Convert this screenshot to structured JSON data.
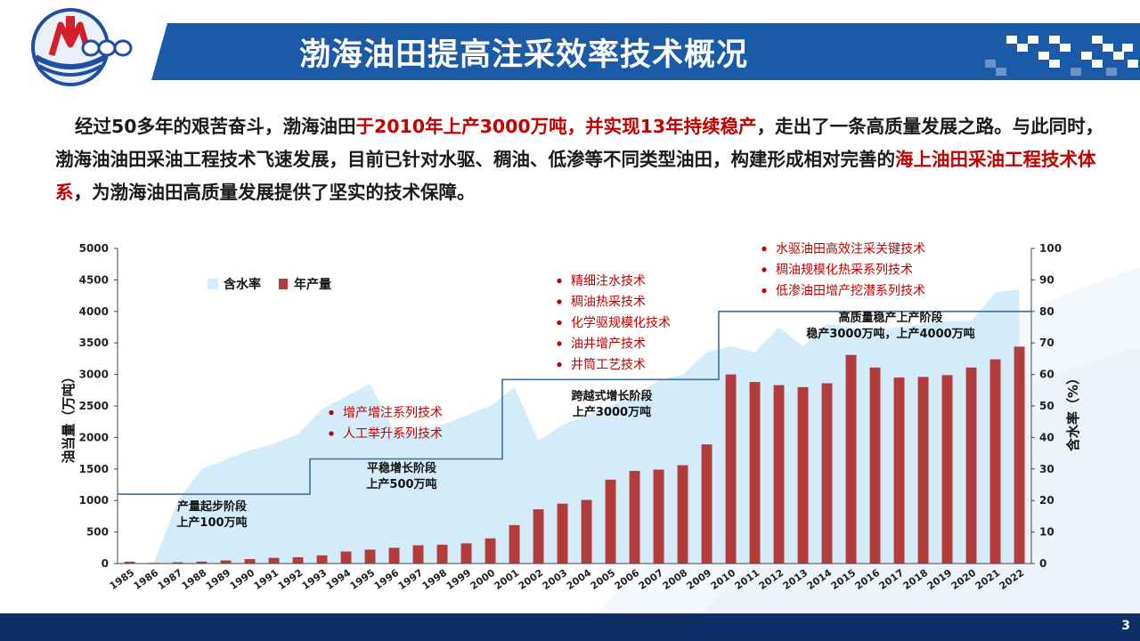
{
  "slide": {
    "title": "渤海油田提高注采效率技术概况",
    "page_number": "3",
    "colors": {
      "header_blue": "#1a5aa6",
      "footer_blue": "#0b2f66",
      "highlight_red": "#c00000",
      "bar_red": "#b23b3b",
      "area_blue": "#d4ebf9",
      "step_line": "#3f6fa0"
    }
  },
  "intro": {
    "s1": "经过50多年的艰苦奋斗，渤海油田",
    "s2": "于2010年上产3000万吨，并实现13年持续稳产",
    "s3": "，走出了一条高质量发展之路。与此同时，渤海油油田采油工程技术飞速发展，目前已针对水驱、稠油、低渗等不同类型油田，构建形成相对完善的",
    "s4": "海上油田采油工程技术体系",
    "s5": "，为渤海油田高质量发展提供了坚实的技术保障。"
  },
  "chart_data": {
    "type": "bar",
    "categories": [
      "1985",
      "1986",
      "1987",
      "1988",
      "1989",
      "1990",
      "1991",
      "1992",
      "1993",
      "1994",
      "1995",
      "1996",
      "1997",
      "1998",
      "1999",
      "2000",
      "2001",
      "2002",
      "2003",
      "2004",
      "2005",
      "2006",
      "2007",
      "2008",
      "2009",
      "2010",
      "2011",
      "2012",
      "2013",
      "2014",
      "2015",
      "2016",
      "2017",
      "2018",
      "2019",
      "2020",
      "2021",
      "2022"
    ],
    "series": [
      {
        "name": "年产量",
        "type": "bar",
        "axis": "left",
        "values": [
          30,
          10,
          20,
          30,
          50,
          70,
          90,
          100,
          130,
          190,
          220,
          250,
          290,
          300,
          320,
          400,
          610,
          860,
          950,
          1010,
          1330,
          1470,
          1490,
          1560,
          1890,
          3000,
          2880,
          2830,
          2800,
          2860,
          3310,
          3110,
          2950,
          2960,
          2990,
          3110,
          3240,
          3440
        ]
      },
      {
        "name": "含水率",
        "type": "area",
        "axis": "right",
        "values": [
          0,
          0,
          20,
          30,
          33,
          36,
          38,
          41,
          49,
          53,
          57,
          42,
          41,
          44,
          47,
          50,
          56,
          39,
          44,
          47,
          50,
          53,
          58,
          60,
          67,
          69,
          67,
          75,
          69,
          76,
          75,
          74,
          75,
          76,
          77,
          77,
          86,
          87
        ]
      }
    ],
    "stage_line": {
      "x_start": 1985,
      "x_end": 2023,
      "points": [
        [
          1985,
          1100
        ],
        [
          1993,
          1100
        ],
        [
          1993,
          1660
        ],
        [
          2001,
          1660
        ],
        [
          2001,
          2920
        ],
        [
          2010,
          2920
        ],
        [
          2010,
          4000
        ],
        [
          2023,
          4000
        ]
      ]
    },
    "stages": [
      {
        "title": "产量起步阶段",
        "subtitle": "上产100万吨"
      },
      {
        "title": "平稳增长阶段",
        "subtitle": "上产500万吨"
      },
      {
        "title": "跨越式增长阶段",
        "subtitle": "上产3000万吨"
      },
      {
        "title": "高质量稳产上产阶段",
        "subtitle": "稳产3000万吨，上产4000万吨"
      }
    ],
    "tech_groups": [
      {
        "items": [
          "增产增注系列技术",
          "人工举升系列技术"
        ]
      },
      {
        "items": [
          "精细注水技术",
          "稠油热采技术",
          "化学驱规模化技术",
          "油井增产技术",
          "井筒工艺技术"
        ]
      },
      {
        "items": [
          "水驱油田高效注采关键技术",
          "稠油规模化热采系列技术",
          "低渗油田增产挖潜系列技术"
        ]
      }
    ],
    "ylabel": "油当量（万吨）",
    "y2label": "含水率（%）",
    "ylim": [
      0,
      5000
    ],
    "y2lim": [
      0,
      100
    ],
    "yticks": [
      0,
      500,
      1000,
      1500,
      2000,
      2500,
      3000,
      3500,
      4000,
      4500,
      5000
    ],
    "y2ticks": [
      0,
      10,
      20,
      30,
      40,
      50,
      60,
      70,
      80,
      90,
      100
    ],
    "legend": {
      "position": "top-left",
      "labels": [
        "含水率",
        "年产量"
      ]
    },
    "grid": false
  }
}
